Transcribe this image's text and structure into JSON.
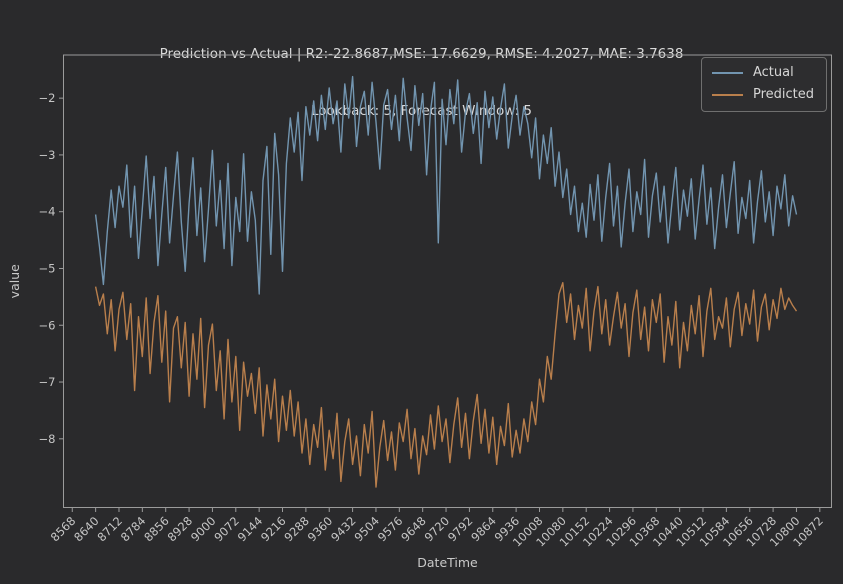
{
  "figure": {
    "background": "#2a2a2c",
    "spine_color": "#9b9b9b",
    "tick_color": "#9b9b9b",
    "text_color": "#c6c6c6",
    "title_color": "#d9d9d9"
  },
  "title": {
    "line1": "Prediction vs Actual | R2:-22.8687,MSE: 17.6629, RMSE: 4.2027, MAE: 3.7638",
    "line2": "Lookback: 5, Forecast Window: 5"
  },
  "stats": {
    "r2": -22.8687,
    "mse": 17.6629,
    "rmse": 4.2027,
    "mae": 3.7638,
    "lookback": 5,
    "forecast_window": 5
  },
  "chart_data": {
    "type": "line",
    "title": "Prediction vs Actual | R2:-22.8687,MSE: 17.6629, RMSE: 4.2027, MAE: 3.7638",
    "subtitle": "Lookback: 5, Forecast Window: 5",
    "xlabel": "DateTime",
    "ylabel": "value",
    "grid": false,
    "xlim": [
      8541,
      10908
    ],
    "ylim": [
      -9.21,
      -1.24
    ],
    "x_ticks": [
      8568,
      8640,
      8712,
      8784,
      8856,
      8928,
      9000,
      9072,
      9144,
      9216,
      9288,
      9360,
      9432,
      9504,
      9576,
      9648,
      9720,
      9792,
      9864,
      9936,
      10008,
      10080,
      10152,
      10224,
      10296,
      10368,
      10440,
      10512,
      10584,
      10656,
      10728,
      10800,
      10872
    ],
    "x_tick_rotation": 45,
    "y_ticks": [
      -2,
      -3,
      -4,
      -5,
      -6,
      -7,
      -8
    ],
    "legend": {
      "position": "upper right",
      "entries": [
        {
          "label": "Actual",
          "color": "#7295b0"
        },
        {
          "label": "Predicted",
          "color": "#b97f4c"
        }
      ]
    },
    "x_start": 8640,
    "x_step": 12,
    "series": [
      {
        "name": "Actual",
        "color": "#7295b0",
        "values": [
          -4.05,
          -4.62,
          -5.28,
          -4.35,
          -3.62,
          -4.28,
          -3.55,
          -3.92,
          -3.18,
          -4.45,
          -3.55,
          -4.82,
          -3.95,
          -3.02,
          -4.12,
          -3.38,
          -4.95,
          -4.05,
          -3.22,
          -4.55,
          -3.72,
          -2.95,
          -4.18,
          -5.05,
          -3.85,
          -3.05,
          -4.42,
          -3.58,
          -4.88,
          -3.95,
          -2.92,
          -4.25,
          -3.45,
          -4.65,
          -3.15,
          -4.95,
          -3.75,
          -4.35,
          -2.98,
          -4.52,
          -3.65,
          -4.15,
          -5.45,
          -3.45,
          -2.85,
          -4.75,
          -2.62,
          -3.35,
          -5.05,
          -3.15,
          -2.35,
          -2.95,
          -2.25,
          -3.45,
          -2.15,
          -2.65,
          -2.05,
          -2.75,
          -1.95,
          -2.55,
          -1.82,
          -2.45,
          -2.05,
          -2.95,
          -1.75,
          -2.35,
          -1.62,
          -2.85,
          -2.15,
          -1.88,
          -2.65,
          -1.72,
          -2.42,
          -3.25,
          -2.12,
          -1.85,
          -2.55,
          -1.95,
          -2.75,
          -1.65,
          -2.35,
          -2.92,
          -1.78,
          -2.48,
          -1.92,
          -3.35,
          -2.22,
          -1.72,
          -4.55,
          -2.02,
          -2.82,
          -1.85,
          -2.45,
          -1.68,
          -2.95,
          -2.25,
          -1.92,
          -2.62,
          -2.08,
          -3.15,
          -1.88,
          -2.52,
          -1.98,
          -2.72,
          -2.18,
          -1.75,
          -2.88,
          -2.32,
          -1.95,
          -2.65,
          -2.15,
          -2.45,
          -3.05,
          -2.35,
          -3.42,
          -2.65,
          -3.15,
          -2.52,
          -3.55,
          -2.95,
          -3.75,
          -3.25,
          -4.05,
          -3.55,
          -4.35,
          -3.85,
          -4.45,
          -3.52,
          -4.15,
          -3.35,
          -4.52,
          -3.75,
          -3.15,
          -4.25,
          -3.55,
          -4.62,
          -3.85,
          -3.25,
          -4.35,
          -3.65,
          -4.05,
          -3.08,
          -4.45,
          -3.72,
          -3.32,
          -4.18,
          -3.55,
          -4.55,
          -3.85,
          -3.22,
          -4.32,
          -3.62,
          -4.08,
          -3.42,
          -4.48,
          -3.78,
          -3.18,
          -4.22,
          -3.58,
          -4.65,
          -3.92,
          -3.35,
          -4.28,
          -3.68,
          -3.12,
          -4.38,
          -3.75,
          -4.12,
          -3.45,
          -4.55,
          -3.82,
          -3.28,
          -4.18,
          -3.65,
          -4.42,
          -3.55,
          -3.95,
          -3.35,
          -4.25,
          -3.72,
          -4.05
        ]
      },
      {
        "name": "Predicted",
        "color": "#b97f4c",
        "values": [
          -5.32,
          -5.65,
          -5.45,
          -6.15,
          -5.55,
          -6.45,
          -5.72,
          -5.42,
          -6.25,
          -5.62,
          -7.15,
          -5.85,
          -6.55,
          -5.52,
          -6.85,
          -5.95,
          -5.48,
          -6.65,
          -5.75,
          -7.35,
          -6.05,
          -5.85,
          -6.75,
          -5.95,
          -7.25,
          -6.15,
          -6.95,
          -5.88,
          -7.45,
          -6.35,
          -5.98,
          -7.15,
          -6.45,
          -7.65,
          -6.25,
          -7.35,
          -6.55,
          -7.85,
          -6.65,
          -7.25,
          -6.85,
          -7.55,
          -6.75,
          -7.95,
          -7.05,
          -7.65,
          -6.95,
          -8.05,
          -7.25,
          -7.85,
          -7.15,
          -7.95,
          -7.35,
          -8.25,
          -7.65,
          -8.45,
          -7.75,
          -8.15,
          -7.45,
          -8.55,
          -7.85,
          -8.35,
          -7.55,
          -8.75,
          -8.05,
          -7.65,
          -8.45,
          -7.95,
          -8.65,
          -7.75,
          -8.25,
          -7.52,
          -8.85,
          -8.15,
          -7.68,
          -8.38,
          -7.88,
          -8.55,
          -7.72,
          -8.05,
          -7.48,
          -8.35,
          -7.82,
          -8.62,
          -7.95,
          -8.28,
          -7.58,
          -8.18,
          -7.42,
          -8.05,
          -7.65,
          -8.42,
          -7.75,
          -7.28,
          -8.15,
          -7.55,
          -8.35,
          -7.68,
          -7.22,
          -8.08,
          -7.48,
          -8.25,
          -7.62,
          -8.45,
          -7.78,
          -8.12,
          -7.38,
          -8.32,
          -7.85,
          -8.25,
          -7.65,
          -8.05,
          -7.35,
          -7.75,
          -6.95,
          -7.35,
          -6.55,
          -6.95,
          -6.15,
          -5.45,
          -5.25,
          -5.95,
          -5.45,
          -6.25,
          -5.65,
          -6.05,
          -5.35,
          -6.45,
          -5.75,
          -5.32,
          -6.15,
          -5.55,
          -6.35,
          -5.85,
          -5.42,
          -6.05,
          -5.62,
          -6.55,
          -5.78,
          -5.38,
          -6.25,
          -5.68,
          -6.45,
          -5.55,
          -5.95,
          -5.45,
          -6.65,
          -5.85,
          -6.35,
          -5.58,
          -6.75,
          -5.95,
          -6.45,
          -5.65,
          -6.15,
          -5.48,
          -6.55,
          -5.75,
          -5.35,
          -6.25,
          -5.85,
          -6.05,
          -5.52,
          -6.38,
          -5.72,
          -5.42,
          -6.18,
          -5.62,
          -5.98,
          -5.38,
          -6.28,
          -5.68,
          -5.45,
          -6.08,
          -5.55,
          -5.88,
          -5.35,
          -5.72,
          -5.52,
          -5.65,
          -5.75
        ]
      }
    ]
  }
}
